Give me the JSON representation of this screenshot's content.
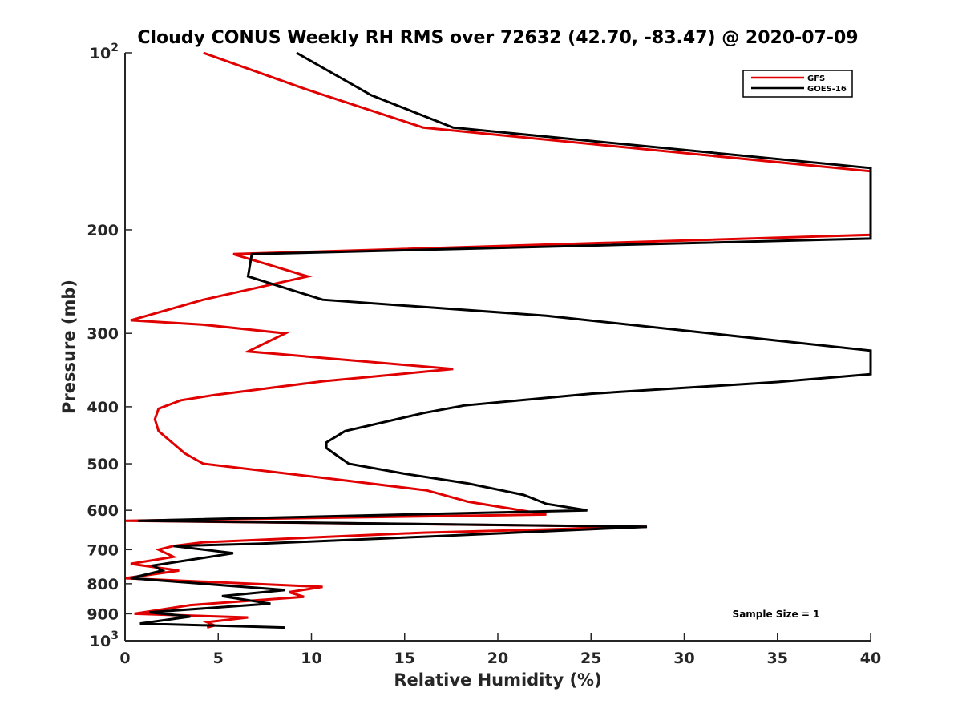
{
  "chart_data": {
    "type": "line",
    "title": "Cloudy CONUS Weekly RH RMS over 72632 (42.70, -83.47) @ 2020-07-09",
    "xlabel": "Relative Humidity (%)",
    "ylabel": "Pressure (mb)",
    "xlim": [
      0,
      40
    ],
    "ylim": [
      100,
      1000
    ],
    "y_scale": "log",
    "y_reversed": true,
    "xticks": [
      0,
      5,
      10,
      15,
      20,
      25,
      30,
      35,
      40
    ],
    "xtick_labels": [
      "0",
      "5",
      "10",
      "15",
      "20",
      "25",
      "30",
      "35",
      "40"
    ],
    "yticks": [
      100,
      200,
      300,
      400,
      500,
      600,
      700,
      800,
      900,
      1000
    ],
    "ytick_labels": [
      {
        "base": "10",
        "exp": "2"
      },
      {
        "base": "200",
        "exp": ""
      },
      {
        "base": "300",
        "exp": ""
      },
      {
        "base": "400",
        "exp": ""
      },
      {
        "base": "500",
        "exp": ""
      },
      {
        "base": "600",
        "exp": ""
      },
      {
        "base": "700",
        "exp": ""
      },
      {
        "base": "800",
        "exp": ""
      },
      {
        "base": "900",
        "exp": ""
      },
      {
        "base": "10",
        "exp": "3"
      }
    ],
    "grid": false,
    "legend_position": "top-right",
    "annotation": "Sample Size = 1",
    "series": [
      {
        "name": "GFS",
        "color": "#e00000",
        "points": [
          [
            4.2,
            100
          ],
          [
            9.6,
            115
          ],
          [
            16.0,
            134
          ],
          [
            40.0,
            159
          ],
          [
            40.0,
            204
          ],
          [
            5.8,
            220
          ],
          [
            9.8,
            240
          ],
          [
            4.2,
            263
          ],
          [
            0.3,
            285
          ],
          [
            4.2,
            290
          ],
          [
            8.6,
            300
          ],
          [
            6.6,
            322
          ],
          [
            17.6,
            345
          ],
          [
            10.6,
            362
          ],
          [
            4.8,
            382
          ],
          [
            3.0,
            390
          ],
          [
            1.8,
            403
          ],
          [
            1.6,
            420
          ],
          [
            1.8,
            440
          ],
          [
            3.2,
            480
          ],
          [
            4.2,
            500
          ],
          [
            11.0,
            530
          ],
          [
            16.2,
            555
          ],
          [
            18.4,
            580
          ],
          [
            22.6,
            610
          ],
          [
            0.0,
            625
          ],
          [
            28.0,
            640
          ],
          [
            16.0,
            655
          ],
          [
            4.2,
            680
          ],
          [
            2.6,
            690
          ],
          [
            1.8,
            700
          ],
          [
            2.6,
            720
          ],
          [
            0.3,
            740
          ],
          [
            2.9,
            760
          ],
          [
            0.0,
            783
          ],
          [
            10.6,
            810
          ],
          [
            8.8,
            827
          ],
          [
            9.6,
            842
          ],
          [
            3.5,
            870
          ],
          [
            0.5,
            900
          ],
          [
            6.6,
            913
          ],
          [
            4.4,
            930
          ],
          [
            4.8,
            942
          ],
          [
            4.4,
            950
          ]
        ]
      },
      {
        "name": "GOES-16",
        "color": "#000000",
        "points": [
          [
            9.2,
            100
          ],
          [
            13.2,
            118
          ],
          [
            17.6,
            134
          ],
          [
            40.0,
            157
          ],
          [
            40.0,
            207
          ],
          [
            6.8,
            220
          ],
          [
            6.6,
            240
          ],
          [
            10.6,
            263
          ],
          [
            22.6,
            280
          ],
          [
            40.0,
            321
          ],
          [
            40.0,
            352
          ],
          [
            35.0,
            363
          ],
          [
            25.0,
            380
          ],
          [
            18.2,
            398
          ],
          [
            16.0,
            410
          ],
          [
            11.8,
            440
          ],
          [
            10.8,
            460
          ],
          [
            10.8,
            470
          ],
          [
            11.2,
            480
          ],
          [
            12.0,
            500
          ],
          [
            15.0,
            520
          ],
          [
            18.4,
            540
          ],
          [
            21.4,
            565
          ],
          [
            22.6,
            585
          ],
          [
            24.8,
            600
          ],
          [
            0.7,
            625
          ],
          [
            28.0,
            640
          ],
          [
            16.2,
            665
          ],
          [
            7.2,
            684
          ],
          [
            2.6,
            690
          ],
          [
            5.8,
            710
          ],
          [
            1.5,
            745
          ],
          [
            2.0,
            760
          ],
          [
            0.3,
            783
          ],
          [
            8.6,
            820
          ],
          [
            5.2,
            840
          ],
          [
            7.8,
            865
          ],
          [
            1.3,
            895
          ],
          [
            3.5,
            910
          ],
          [
            0.8,
            935
          ],
          [
            8.6,
            950
          ]
        ]
      }
    ]
  }
}
